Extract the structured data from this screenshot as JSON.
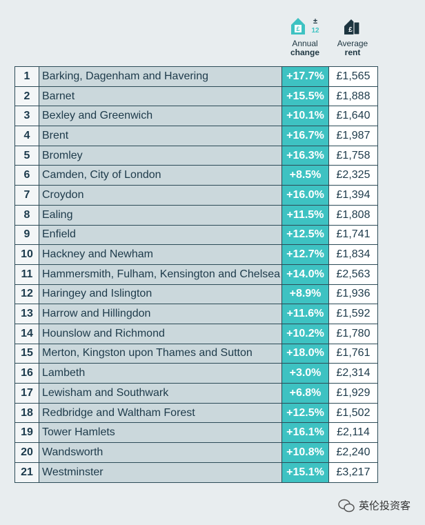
{
  "header": {
    "change_icon": {
      "sign": "±",
      "number": "12"
    },
    "change_label": [
      "Annual",
      "change"
    ],
    "rent_label": [
      "Average",
      "rent"
    ]
  },
  "table": {
    "rows": [
      [
        "1",
        "Barking, Dagenham and Havering",
        "+17.7%",
        "£1,565"
      ],
      [
        "2",
        "Barnet",
        "+15.5%",
        "£1,888"
      ],
      [
        "3",
        "Bexley and Greenwich",
        "+10.1%",
        "£1,640"
      ],
      [
        "4",
        "Brent",
        "+16.7%",
        "£1,987"
      ],
      [
        "5",
        "Bromley",
        "+16.3%",
        "£1,758"
      ],
      [
        "6",
        "Camden, City of London",
        "+8.5%",
        "£2,325"
      ],
      [
        "7",
        "Croydon",
        "+16.0%",
        "£1,394"
      ],
      [
        "8",
        "Ealing",
        "+11.5%",
        "£1,808"
      ],
      [
        "9",
        "Enfield",
        "+12.5%",
        "£1,741"
      ],
      [
        "10",
        "Hackney and Newham",
        "+12.7%",
        "£1,834"
      ],
      [
        "11",
        "Hammersmith, Fulham, Kensington and Chelsea",
        "+14.0%",
        "£2,563"
      ],
      [
        "12",
        "Haringey and Islington",
        "+8.9%",
        "£1,936"
      ],
      [
        "13",
        "Harrow and Hillingdon",
        "+11.6%",
        "£1,592"
      ],
      [
        "14",
        "Hounslow and Richmond",
        "+10.2%",
        "£1,780"
      ],
      [
        "15",
        "Merton, Kingston upon Thames and Sutton",
        "+18.0%",
        "£1,761"
      ],
      [
        "16",
        "Lambeth",
        "+3.0%",
        "£2,314"
      ],
      [
        "17",
        "Lewisham and Southwark",
        "+6.8%",
        "£1,929"
      ],
      [
        "18",
        "Redbridge and Waltham Forest",
        "+12.5%",
        "£1,502"
      ],
      [
        "19",
        "Tower Hamlets",
        "+16.1%",
        "£2,114"
      ],
      [
        "20",
        "Wandsworth",
        "+10.8%",
        "£2,240"
      ],
      [
        "21",
        "Westminster",
        "+15.1%",
        "£3,217"
      ]
    ]
  },
  "watermark": "英伦投资客"
}
